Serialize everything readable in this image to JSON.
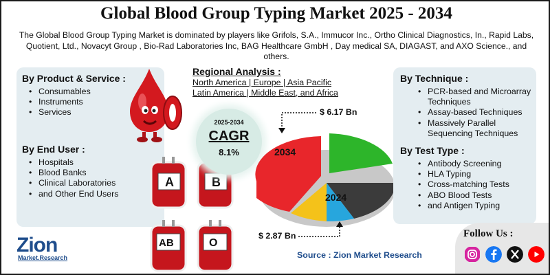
{
  "title": "Global Blood Group Typing Market 2025 - 2034",
  "subtitle": "The Global Blood Group Typing Market is dominated by players like Grifols, S.A., Immucor Inc., Ortho Clinical Diagnostics, In., Rapid Labs, Quotient, Ltd., Novacyt Group , Bio-Rad Laboratories Inc, BAG Healthcare GmbH , Day medical SA, DIAGAST, and AXO Science., and others.",
  "product_service": {
    "title": "By Product & Service :",
    "items": [
      "Consumables",
      "Instruments",
      "Services"
    ]
  },
  "end_user": {
    "title": "By End User :",
    "items": [
      "Hospitals",
      "Blood Banks",
      "Clinical Laboratories",
      "and Other End Users"
    ]
  },
  "regional": {
    "title": "Regional Analysis :",
    "line1": "North America | Europe | Asia Pacific",
    "line2": "Latin America | Middle East, and Africa"
  },
  "cagr": {
    "years": "2025-2034",
    "label": "CAGR",
    "value": "8.1%"
  },
  "pie": {
    "value_high": "$ 6.17 Bn",
    "value_low": "$ 2.87 Bn",
    "label_2034": "2034",
    "label_2024": "2024",
    "colors": [
      "#e8262b",
      "#2db52a",
      "#3b3b3b",
      "#f4c21a",
      "#27a6dd"
    ]
  },
  "technique": {
    "title": "By Technique :",
    "items": [
      "PCR-based and Microarray Techniques",
      "Assay-based Techniques",
      "Massively Parallel Sequencing Techniques"
    ]
  },
  "test_type": {
    "title": "By Test Type :",
    "items": [
      "Antibody Screening",
      "HLA Typing",
      "Cross-matching Tests",
      "ABO Blood Tests",
      "and Antigen Typing"
    ]
  },
  "blood_bags": [
    "A",
    "B",
    "AB",
    "O"
  ],
  "source": "Source : Zion Market Research",
  "follow": "Follow Us :",
  "social_icons": [
    "instagram-icon",
    "facebook-icon",
    "x-icon",
    "youtube-icon"
  ],
  "logo": {
    "name": "Zion",
    "sub": "Market.Research"
  }
}
